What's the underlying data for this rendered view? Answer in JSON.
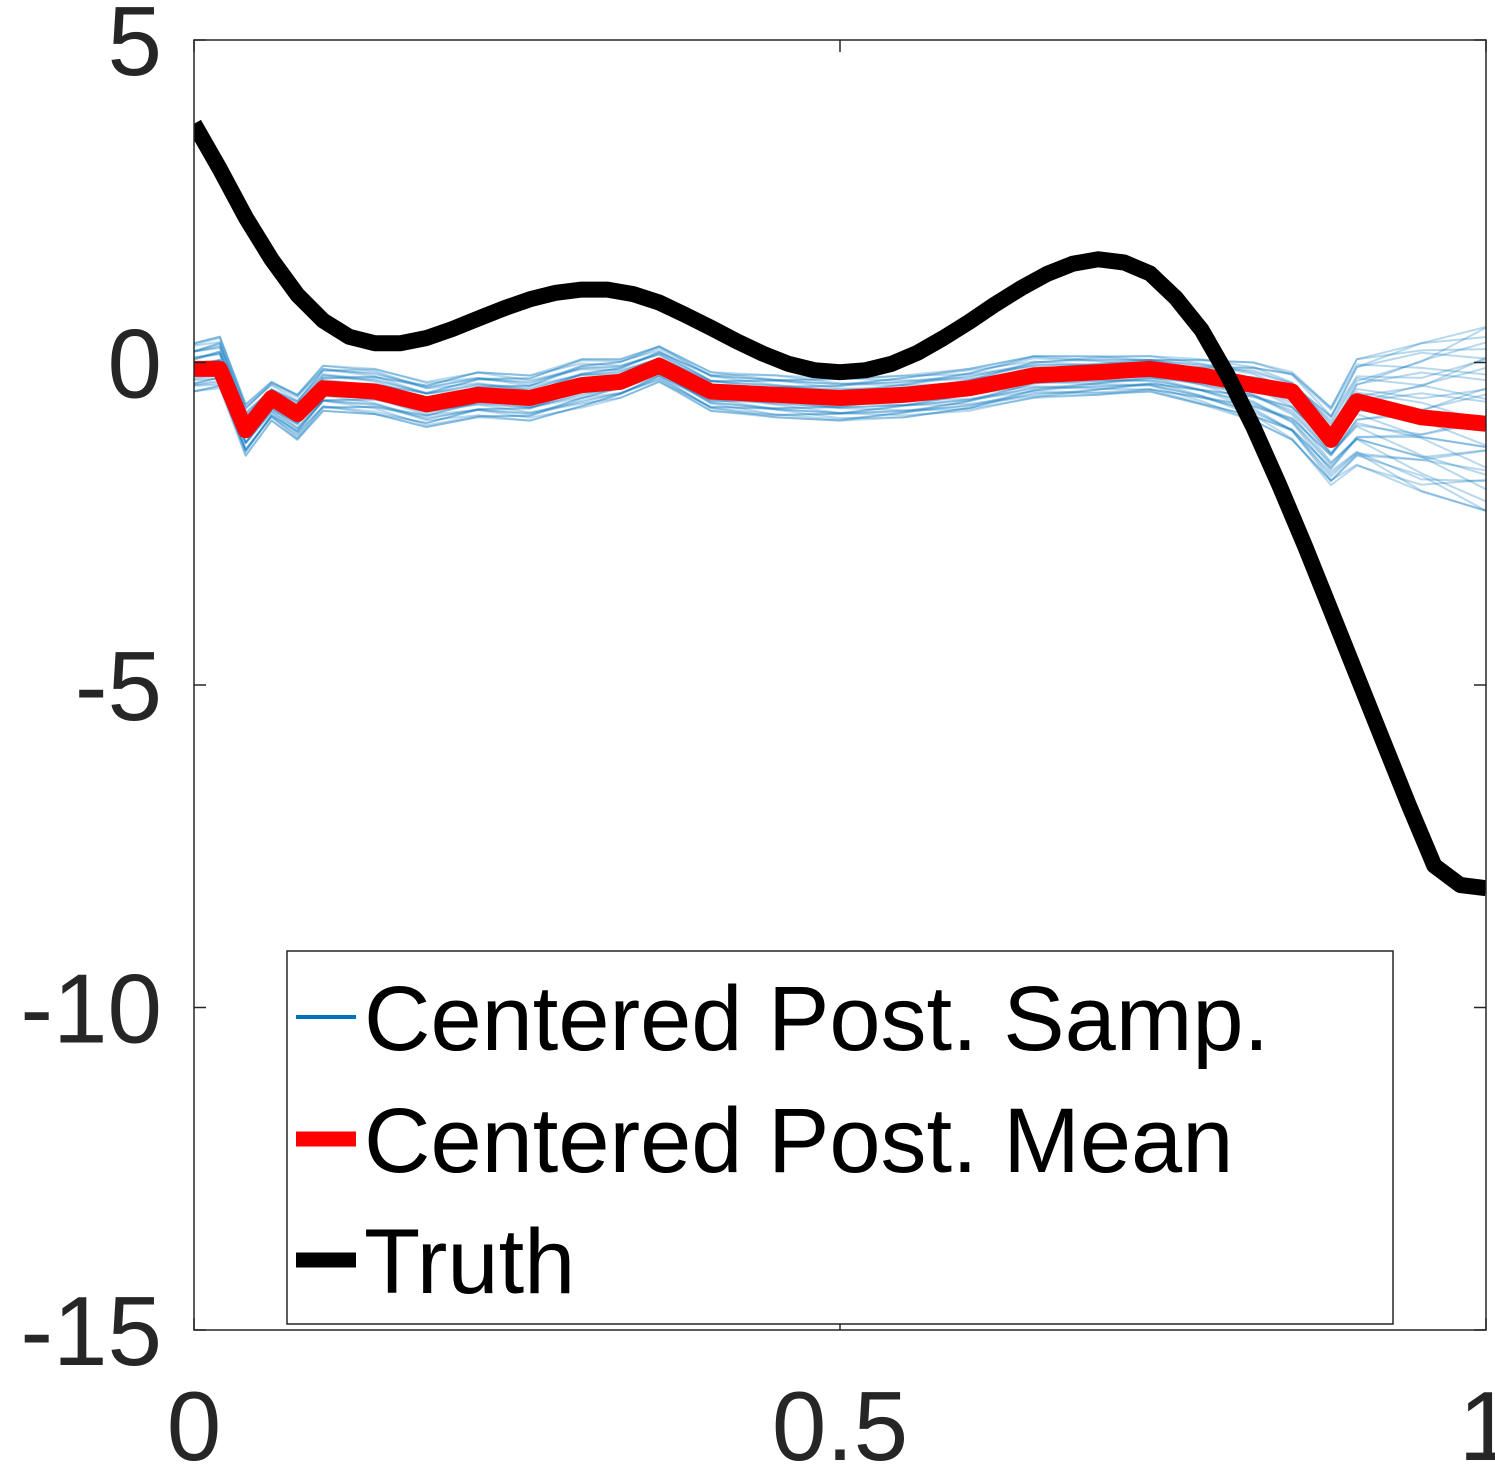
{
  "chart_data": {
    "type": "line",
    "title": "",
    "xlabel": "",
    "ylabel": "",
    "xlim": [
      0,
      1
    ],
    "ylim": [
      -15,
      5
    ],
    "xticks": [
      0,
      0.5,
      1
    ],
    "yticks": [
      5,
      0,
      -5,
      -10,
      -15
    ],
    "xtick_labels": [
      "0",
      "0.5",
      "1"
    ],
    "ytick_labels": [
      "5",
      "0",
      "-5",
      "-10",
      "-15"
    ],
    "grid": false,
    "legend_position": "bottom",
    "series": [
      {
        "name": "Centered Post. Samp.",
        "color": "#0072BD",
        "kind": "sample-band",
        "x": [
          0,
          0.02,
          0.04,
          0.06,
          0.08,
          0.1,
          0.14,
          0.18,
          0.22,
          0.26,
          0.3,
          0.33,
          0.36,
          0.4,
          0.45,
          0.5,
          0.55,
          0.6,
          0.65,
          0.7,
          0.74,
          0.78,
          0.82,
          0.85,
          0.88,
          0.9,
          0.95,
          1
        ],
        "lower": [
          -0.45,
          -0.4,
          -1.45,
          -0.9,
          -1.2,
          -0.75,
          -0.8,
          -1.0,
          -0.85,
          -0.9,
          -0.7,
          -0.55,
          -0.3,
          -0.75,
          -0.85,
          -0.9,
          -0.85,
          -0.75,
          -0.55,
          -0.5,
          -0.45,
          -0.65,
          -0.9,
          -1.2,
          -1.9,
          -1.6,
          -2.0,
          -2.3
        ],
        "upper": [
          0.3,
          0.4,
          -0.65,
          -0.3,
          -0.5,
          -0.05,
          -0.1,
          -0.3,
          -0.15,
          -0.2,
          0.05,
          0.05,
          0.25,
          -0.15,
          -0.2,
          -0.25,
          -0.2,
          -0.1,
          0.1,
          0.1,
          0.1,
          0.05,
          0.0,
          -0.15,
          -0.7,
          0.05,
          0.3,
          0.55
        ]
      },
      {
        "name": "Centered Post. Mean",
        "color": "#FF0000",
        "x": [
          0,
          0.02,
          0.04,
          0.06,
          0.08,
          0.1,
          0.14,
          0.18,
          0.22,
          0.26,
          0.3,
          0.33,
          0.36,
          0.4,
          0.45,
          0.5,
          0.55,
          0.6,
          0.65,
          0.7,
          0.74,
          0.78,
          0.82,
          0.85,
          0.88,
          0.9,
          0.95,
          1
        ],
        "y": [
          -0.1,
          -0.1,
          -1.05,
          -0.55,
          -0.8,
          -0.4,
          -0.45,
          -0.65,
          -0.5,
          -0.55,
          -0.35,
          -0.3,
          -0.05,
          -0.45,
          -0.5,
          -0.55,
          -0.5,
          -0.4,
          -0.2,
          -0.15,
          -0.1,
          -0.2,
          -0.35,
          -0.45,
          -1.2,
          -0.6,
          -0.85,
          -0.95
        ]
      },
      {
        "name": "Truth",
        "color": "#000000",
        "x": [
          0,
          0.02,
          0.04,
          0.06,
          0.08,
          0.1,
          0.12,
          0.14,
          0.16,
          0.18,
          0.2,
          0.22,
          0.24,
          0.26,
          0.28,
          0.3,
          0.32,
          0.34,
          0.36,
          0.38,
          0.4,
          0.42,
          0.44,
          0.46,
          0.48,
          0.5,
          0.52,
          0.54,
          0.56,
          0.58,
          0.6,
          0.62,
          0.64,
          0.66,
          0.68,
          0.7,
          0.72,
          0.74,
          0.76,
          0.78,
          0.8,
          0.82,
          0.84,
          0.86,
          0.88,
          0.9,
          0.92,
          0.94,
          0.96,
          0.98,
          1
        ],
        "y": [
          3.7,
          3.0,
          2.25,
          1.6,
          1.05,
          0.65,
          0.4,
          0.3,
          0.3,
          0.38,
          0.52,
          0.68,
          0.84,
          0.98,
          1.08,
          1.13,
          1.13,
          1.06,
          0.93,
          0.74,
          0.54,
          0.33,
          0.14,
          -0.02,
          -0.12,
          -0.15,
          -0.12,
          -0.02,
          0.15,
          0.38,
          0.63,
          0.9,
          1.15,
          1.37,
          1.53,
          1.6,
          1.55,
          1.38,
          1.0,
          0.5,
          -0.2,
          -1.0,
          -1.9,
          -2.85,
          -3.85,
          -4.85,
          -5.85,
          -6.85,
          -7.8,
          -8.1,
          -8.15
        ]
      }
    ]
  }
}
